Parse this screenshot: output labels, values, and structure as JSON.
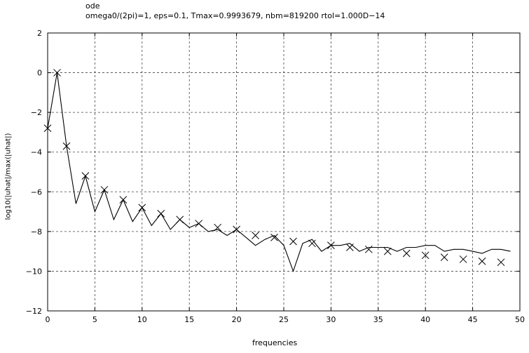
{
  "chart_data": {
    "type": "line",
    "title": "ode",
    "subtitle": "omega0/(2pi)=1,  eps=0.1, Tmax=0.9993679, nbm=819200 rtol=1.000D−14",
    "xlabel": "frequencies",
    "ylabel": "log10(|uhat|/max(|uhat|)",
    "xlim": [
      0,
      50
    ],
    "ylim": [
      -12,
      2
    ],
    "xticks": [
      "0",
      "5",
      "10",
      "15",
      "20",
      "25",
      "30",
      "35",
      "40",
      "45",
      "50"
    ],
    "yticks": [
      "2",
      "0",
      "−2",
      "−4",
      "−6",
      "−8",
      "−10",
      "−12"
    ],
    "grid": true,
    "series": [
      {
        "style": "line",
        "x": [
          0,
          1,
          2,
          3,
          4,
          5,
          6,
          7,
          8,
          9,
          10,
          11,
          12,
          13,
          14,
          15,
          16,
          17,
          18,
          19,
          20,
          21,
          22,
          23,
          24,
          25,
          26,
          27,
          28,
          29,
          30,
          31,
          32,
          33,
          34,
          35,
          36,
          37,
          38,
          39,
          40,
          41,
          42,
          43,
          44,
          45,
          46,
          47,
          48,
          49
        ],
        "y": [
          -2.8,
          0,
          -3.7,
          -6.6,
          -5.2,
          -7.0,
          -5.9,
          -7.4,
          -6.4,
          -7.5,
          -6.8,
          -7.7,
          -7.1,
          -7.9,
          -7.4,
          -7.8,
          -7.6,
          -8.0,
          -7.9,
          -8.2,
          -7.9,
          -8.3,
          -8.7,
          -8.4,
          -8.2,
          -8.7,
          -10.0,
          -8.6,
          -8.4,
          -9.0,
          -8.7,
          -8.7,
          -8.6,
          -9.0,
          -8.8,
          -8.8,
          -8.8,
          -9.0,
          -8.8,
          -8.8,
          -8.7,
          -8.7,
          -9.0,
          -8.9,
          -8.9,
          -9.0,
          -9.1,
          -8.9,
          -8.9,
          -9.0
        ]
      },
      {
        "style": "markers",
        "marker": "x",
        "x": [
          0,
          1,
          2,
          4,
          6,
          8,
          10,
          12,
          14,
          16,
          18,
          20,
          22,
          24,
          26,
          28,
          30,
          32,
          34,
          36,
          38,
          40,
          42,
          44,
          46,
          48
        ],
        "y": [
          -2.8,
          0,
          -3.7,
          -5.2,
          -5.9,
          -6.4,
          -6.8,
          -7.1,
          -7.4,
          -7.6,
          -7.8,
          -7.9,
          -8.2,
          -8.3,
          -8.5,
          -8.6,
          -8.7,
          -8.8,
          -8.9,
          -9.0,
          -9.1,
          -9.2,
          -9.3,
          -9.4,
          -9.5,
          -9.55
        ]
      }
    ]
  }
}
